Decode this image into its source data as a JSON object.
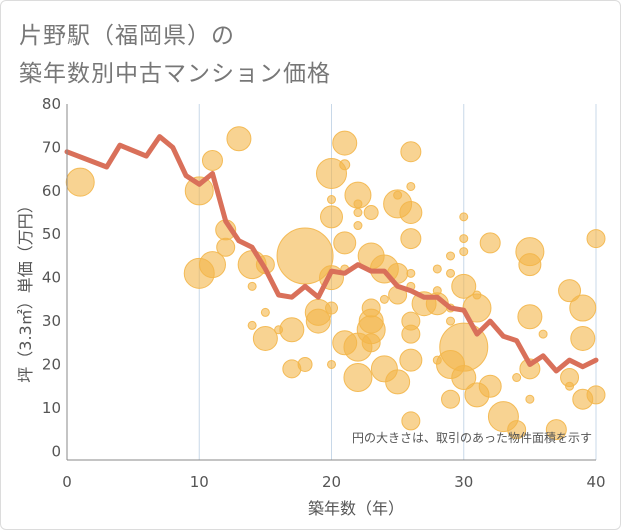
{
  "title": {
    "line1": "片野駅（福岡県）の",
    "line2": "築年数別中古マンション価格"
  },
  "colors": {
    "bubble": "#f3b64a",
    "line": "#d9705a",
    "grid": "#c8d8e8",
    "axis": "#888888"
  },
  "chart_data": {
    "type": "scatter",
    "xlabel": "築年数（年）",
    "ylabel": "坪（3.3㎡）単価（万円）",
    "xlim": [
      0,
      40
    ],
    "ylim": [
      -2,
      80
    ],
    "x_ticks": [
      0,
      10,
      20,
      30,
      40
    ],
    "y_ticks": [
      0,
      10,
      20,
      30,
      40,
      50,
      60,
      70,
      80
    ],
    "annotation": "円の大きさは、取引のあった物件面積を示す",
    "series": [
      {
        "kind": "line",
        "points": [
          [
            0,
            69
          ],
          [
            3,
            65.5
          ],
          [
            4,
            70.5
          ],
          [
            6,
            68
          ],
          [
            7,
            72.5
          ],
          [
            8,
            70
          ],
          [
            9,
            63.5
          ],
          [
            10,
            61.5
          ],
          [
            11,
            64
          ],
          [
            12,
            53
          ],
          [
            13,
            48.5
          ],
          [
            14,
            47
          ],
          [
            15,
            42
          ],
          [
            16,
            36
          ],
          [
            17,
            35.5
          ],
          [
            18,
            38
          ],
          [
            19,
            35.5
          ],
          [
            20,
            41.5
          ],
          [
            21,
            41
          ],
          [
            22,
            43
          ],
          [
            23,
            41.5
          ],
          [
            24,
            41.5
          ],
          [
            25,
            38
          ],
          [
            26,
            37
          ],
          [
            27,
            35.5
          ],
          [
            28,
            35.5
          ],
          [
            29,
            33
          ],
          [
            30,
            32.5
          ],
          [
            31,
            27
          ],
          [
            32,
            30
          ],
          [
            33,
            26.5
          ],
          [
            34,
            25.5
          ],
          [
            35,
            20
          ],
          [
            36,
            22
          ],
          [
            37,
            18.5
          ],
          [
            38,
            21
          ],
          [
            39,
            19.5
          ],
          [
            40,
            21
          ]
        ]
      },
      {
        "kind": "bubbles",
        "points": [
          [
            1,
            62,
            14
          ],
          [
            10,
            60,
            14
          ],
          [
            11,
            67,
            10
          ],
          [
            13,
            72,
            12
          ],
          [
            10,
            41,
            15
          ],
          [
            11,
            43,
            13
          ],
          [
            12,
            51,
            10
          ],
          [
            12,
            47,
            9
          ],
          [
            14,
            43,
            14
          ],
          [
            15,
            43,
            9
          ],
          [
            14,
            38,
            4
          ],
          [
            15,
            26,
            12
          ],
          [
            16,
            28,
            4
          ],
          [
            15,
            32,
            4
          ],
          [
            14,
            29,
            4
          ],
          [
            17,
            28,
            12
          ],
          [
            17,
            19,
            9
          ],
          [
            18,
            20,
            7
          ],
          [
            18,
            45,
            28
          ],
          [
            19,
            32,
            13
          ],
          [
            19,
            30,
            12
          ],
          [
            20,
            64,
            15
          ],
          [
            20,
            54,
            11
          ],
          [
            21,
            71,
            12
          ],
          [
            21,
            66,
            5
          ],
          [
            21,
            48,
            11
          ],
          [
            20,
            58,
            4
          ],
          [
            22,
            59,
            13
          ],
          [
            22,
            57,
            4
          ],
          [
            22,
            55,
            4
          ],
          [
            23,
            55,
            7
          ],
          [
            22,
            52,
            4
          ],
          [
            20,
            40,
            12
          ],
          [
            20,
            33,
            6
          ],
          [
            21,
            42,
            4
          ],
          [
            21,
            25,
            12
          ],
          [
            22,
            24,
            14
          ],
          [
            22,
            17,
            14
          ],
          [
            20,
            20,
            4
          ],
          [
            23,
            45,
            13
          ],
          [
            23,
            28,
            14
          ],
          [
            23,
            30,
            12
          ],
          [
            23,
            25,
            9
          ],
          [
            23,
            33,
            9
          ],
          [
            24,
            42,
            14
          ],
          [
            24,
            19,
            13
          ],
          [
            24,
            35,
            4
          ],
          [
            25,
            57,
            14
          ],
          [
            25,
            59,
            4
          ],
          [
            26,
            55,
            11
          ],
          [
            25,
            41,
            10
          ],
          [
            26,
            41,
            4
          ],
          [
            26,
            49,
            10
          ],
          [
            26,
            69,
            10
          ],
          [
            26,
            61,
            4
          ],
          [
            25,
            36,
            9
          ],
          [
            26,
            38,
            4
          ],
          [
            26,
            30,
            9
          ],
          [
            26,
            27,
            9
          ],
          [
            25,
            16,
            12
          ],
          [
            26,
            21,
            11
          ],
          [
            26,
            7,
            9
          ],
          [
            27,
            34,
            12
          ],
          [
            28,
            42,
            4
          ],
          [
            28,
            37,
            4
          ],
          [
            28,
            34,
            11
          ],
          [
            28,
            21,
            4
          ],
          [
            29,
            41,
            4
          ],
          [
            29,
            33,
            4
          ],
          [
            29,
            30,
            4
          ],
          [
            29,
            20,
            14
          ],
          [
            29,
            12,
            9
          ],
          [
            30,
            24,
            24
          ],
          [
            30,
            17,
            12
          ],
          [
            30,
            38,
            12
          ],
          [
            30,
            54,
            4
          ],
          [
            30,
            49,
            4
          ],
          [
            30,
            46,
            4
          ],
          [
            29,
            45,
            4
          ],
          [
            31,
            33,
            14
          ],
          [
            31,
            36,
            4
          ],
          [
            31,
            13,
            12
          ],
          [
            32,
            48,
            10
          ],
          [
            32,
            15,
            11
          ],
          [
            33,
            8,
            15
          ],
          [
            34,
            5,
            9
          ],
          [
            34,
            17,
            4
          ],
          [
            35,
            46,
            14
          ],
          [
            35,
            43,
            11
          ],
          [
            35,
            31,
            12
          ],
          [
            35,
            19,
            10
          ],
          [
            35,
            12,
            4
          ],
          [
            37,
            5,
            10
          ],
          [
            38,
            37,
            11
          ],
          [
            38,
            17,
            9
          ],
          [
            38,
            15,
            4
          ],
          [
            39,
            26,
            12
          ],
          [
            39,
            33,
            13
          ],
          [
            40,
            49,
            9
          ],
          [
            40,
            13,
            9
          ],
          [
            39,
            12,
            10
          ],
          [
            36,
            27,
            4
          ]
        ]
      }
    ]
  }
}
